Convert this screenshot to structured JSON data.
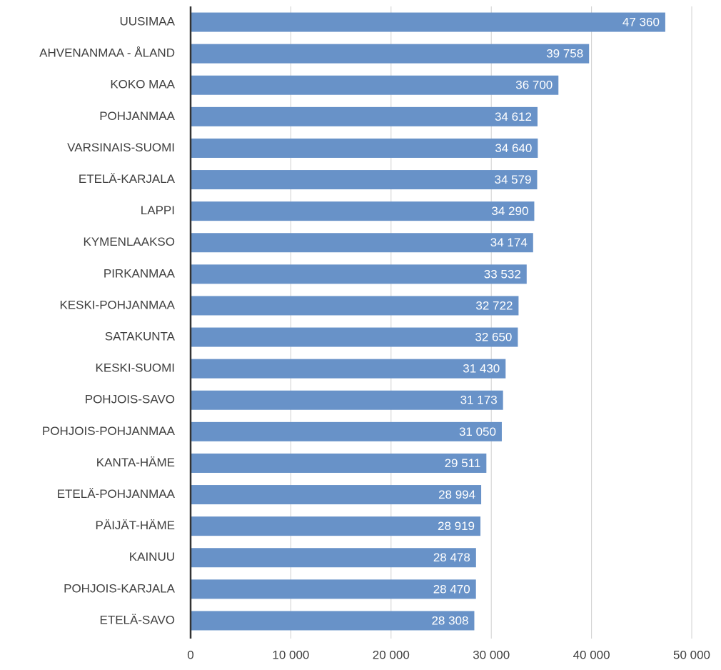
{
  "chart_data": {
    "type": "bar",
    "orientation": "horizontal",
    "categories": [
      "UUSIMAA",
      "AHVENANMAA - ÅLAND",
      "KOKO MAA",
      "POHJANMAA",
      "VARSINAIS-SUOMI",
      "ETELÄ-KARJALA",
      "LAPPI",
      "KYMENLAAKSO",
      "PIRKANMAA",
      "KESKI-POHJANMAA",
      "SATAKUNTA",
      "KESKI-SUOMI",
      "POHJOIS-SAVO",
      "POHJOIS-POHJANMAA",
      "KANTA-HÄME",
      "ETELÄ-POHJANMAA",
      "PÄIJÄT-HÄME",
      "KAINUU",
      "POHJOIS-KARJALA",
      "ETELÄ-SAVO"
    ],
    "values": [
      47360,
      39758,
      36700,
      34612,
      34640,
      34579,
      34290,
      34174,
      33532,
      32722,
      32650,
      31430,
      31173,
      31050,
      29511,
      28994,
      28919,
      28478,
      28470,
      28308
    ],
    "value_labels": [
      "47 360",
      "39 758",
      "36 700",
      "34 612",
      "34 640",
      "34 579",
      "34 290",
      "34 174",
      "33 532",
      "32 722",
      "32 650",
      "31 430",
      "31 173",
      "31 050",
      "29 511",
      "28 994",
      "28 919",
      "28 478",
      "28 470",
      "28 308"
    ],
    "color": "#6892c8",
    "xlim": [
      0,
      50000
    ],
    "xticks": [
      0,
      {
        "value": 10000,
        "label": "10 000"
      },
      {
        "value": 20000,
        "label": "20 000"
      },
      {
        "value": 30000,
        "label": "30 000"
      },
      {
        "value": 40000,
        "label": "40 000"
      },
      {
        "value": 50000,
        "label": "50 000"
      }
    ],
    "grid": true
  }
}
